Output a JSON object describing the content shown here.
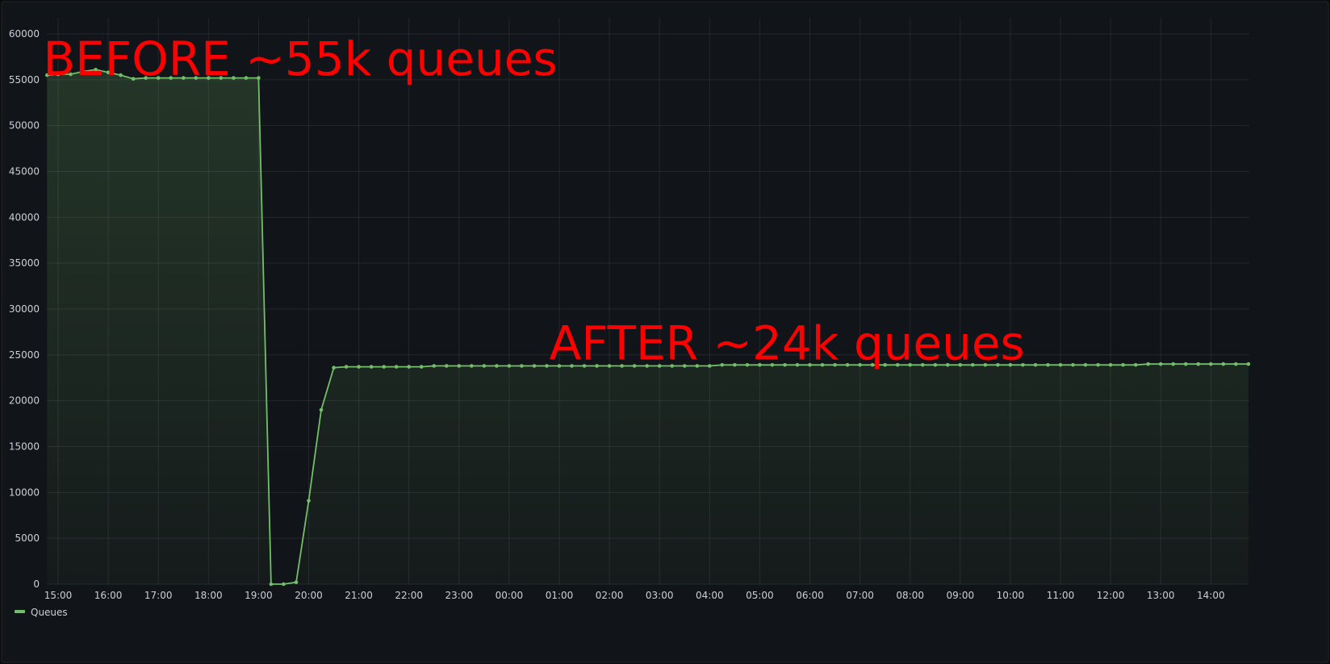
{
  "colors": {
    "background": "#111418",
    "series": "#73bf69",
    "annotation": "#ff0000",
    "text": "#cccfd6"
  },
  "chart_data": {
    "type": "area",
    "grid": true,
    "legend_position": "bottom-left",
    "ylim": [
      0,
      60000
    ],
    "y_ticks": [
      0,
      5000,
      10000,
      15000,
      20000,
      25000,
      30000,
      35000,
      40000,
      45000,
      50000,
      55000,
      60000
    ],
    "x_ticks": [
      "15:00",
      "16:00",
      "17:00",
      "18:00",
      "19:00",
      "20:00",
      "21:00",
      "22:00",
      "23:00",
      "00:00",
      "01:00",
      "02:00",
      "03:00",
      "04:00",
      "05:00",
      "06:00",
      "07:00",
      "08:00",
      "09:00",
      "10:00",
      "11:00",
      "12:00",
      "13:00",
      "14:00"
    ],
    "x_range_hours": [
      -0.25,
      23.8
    ],
    "annotations": [
      {
        "text": "BEFORE ~55k queues",
        "x": -0.3,
        "y": 55500
      },
      {
        "text": "AFTER ~24k queues",
        "x": 9.8,
        "y": 24500
      }
    ],
    "series": [
      {
        "name": "Queues",
        "x": [
          -0.22,
          0,
          0.25,
          0.5,
          0.75,
          1,
          1.25,
          1.5,
          1.75,
          2,
          2.25,
          2.5,
          2.75,
          3,
          3.25,
          3.5,
          3.75,
          4,
          4.25,
          4.5,
          4.75,
          5,
          5.25,
          5.5,
          5.75,
          6,
          6.25,
          6.5,
          6.75,
          7,
          7.25,
          7.5,
          7.75,
          8,
          8.25,
          8.5,
          8.75,
          9,
          9.25,
          9.5,
          9.75,
          10,
          10.25,
          10.5,
          10.75,
          11,
          11.25,
          11.5,
          11.75,
          12,
          12.25,
          12.5,
          12.75,
          13,
          13.25,
          13.5,
          13.75,
          14,
          14.25,
          14.5,
          14.75,
          15,
          15.25,
          15.5,
          15.75,
          16,
          16.25,
          16.5,
          16.75,
          17,
          17.25,
          17.5,
          17.75,
          18,
          18.25,
          18.5,
          18.75,
          19,
          19.25,
          19.5,
          19.75,
          20,
          20.25,
          20.5,
          20.75,
          21,
          21.25,
          21.5,
          21.75,
          22,
          22.25,
          22.5,
          22.75,
          23,
          23.25,
          23.5,
          23.75
        ],
        "values": [
          55500,
          55600,
          55600,
          55900,
          56100,
          55800,
          55500,
          55100,
          55200,
          55200,
          55200,
          55200,
          55200,
          55200,
          55200,
          55200,
          55200,
          55200,
          0,
          0,
          200,
          9100,
          19000,
          23600,
          23700,
          23700,
          23700,
          23700,
          23700,
          23700,
          23700,
          23800,
          23800,
          23800,
          23800,
          23800,
          23800,
          23800,
          23800,
          23800,
          23800,
          23800,
          23800,
          23800,
          23800,
          23800,
          23800,
          23800,
          23800,
          23800,
          23800,
          23800,
          23800,
          23800,
          23900,
          23900,
          23900,
          23900,
          23900,
          23900,
          23900,
          23900,
          23900,
          23900,
          23900,
          23900,
          23900,
          23900,
          23900,
          23900,
          23900,
          23900,
          23900,
          23900,
          23900,
          23900,
          23900,
          23900,
          23900,
          23900,
          23900,
          23900,
          23900,
          23900,
          23900,
          23900,
          23900,
          23900,
          24000,
          24000,
          24000,
          24000,
          24000,
          24000,
          24000,
          24000,
          24000
        ]
      }
    ]
  }
}
